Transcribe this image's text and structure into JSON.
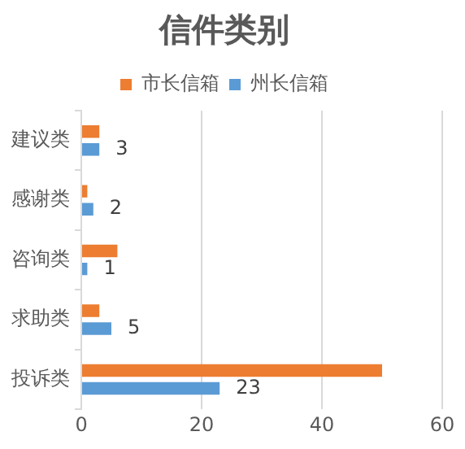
{
  "chart_data": {
    "type": "bar",
    "orientation": "horizontal",
    "title": "信件类别",
    "categories": [
      "建议类",
      "感谢类",
      "咨询类",
      "求助类",
      "投诉类"
    ],
    "series": [
      {
        "name": "市长信箱",
        "color": "#ed7d31",
        "values": [
          3,
          1,
          6,
          3,
          50
        ]
      },
      {
        "name": "州长信箱",
        "color": "#5b9bd5",
        "values": [
          3,
          2,
          1,
          5,
          23
        ],
        "value_labels": [
          "3",
          "2",
          "1",
          "5",
          "23"
        ]
      }
    ],
    "xlim": [
      0,
      60
    ],
    "xticks": [
      0,
      20,
      40,
      60
    ],
    "grid": "x",
    "legend": "top"
  }
}
